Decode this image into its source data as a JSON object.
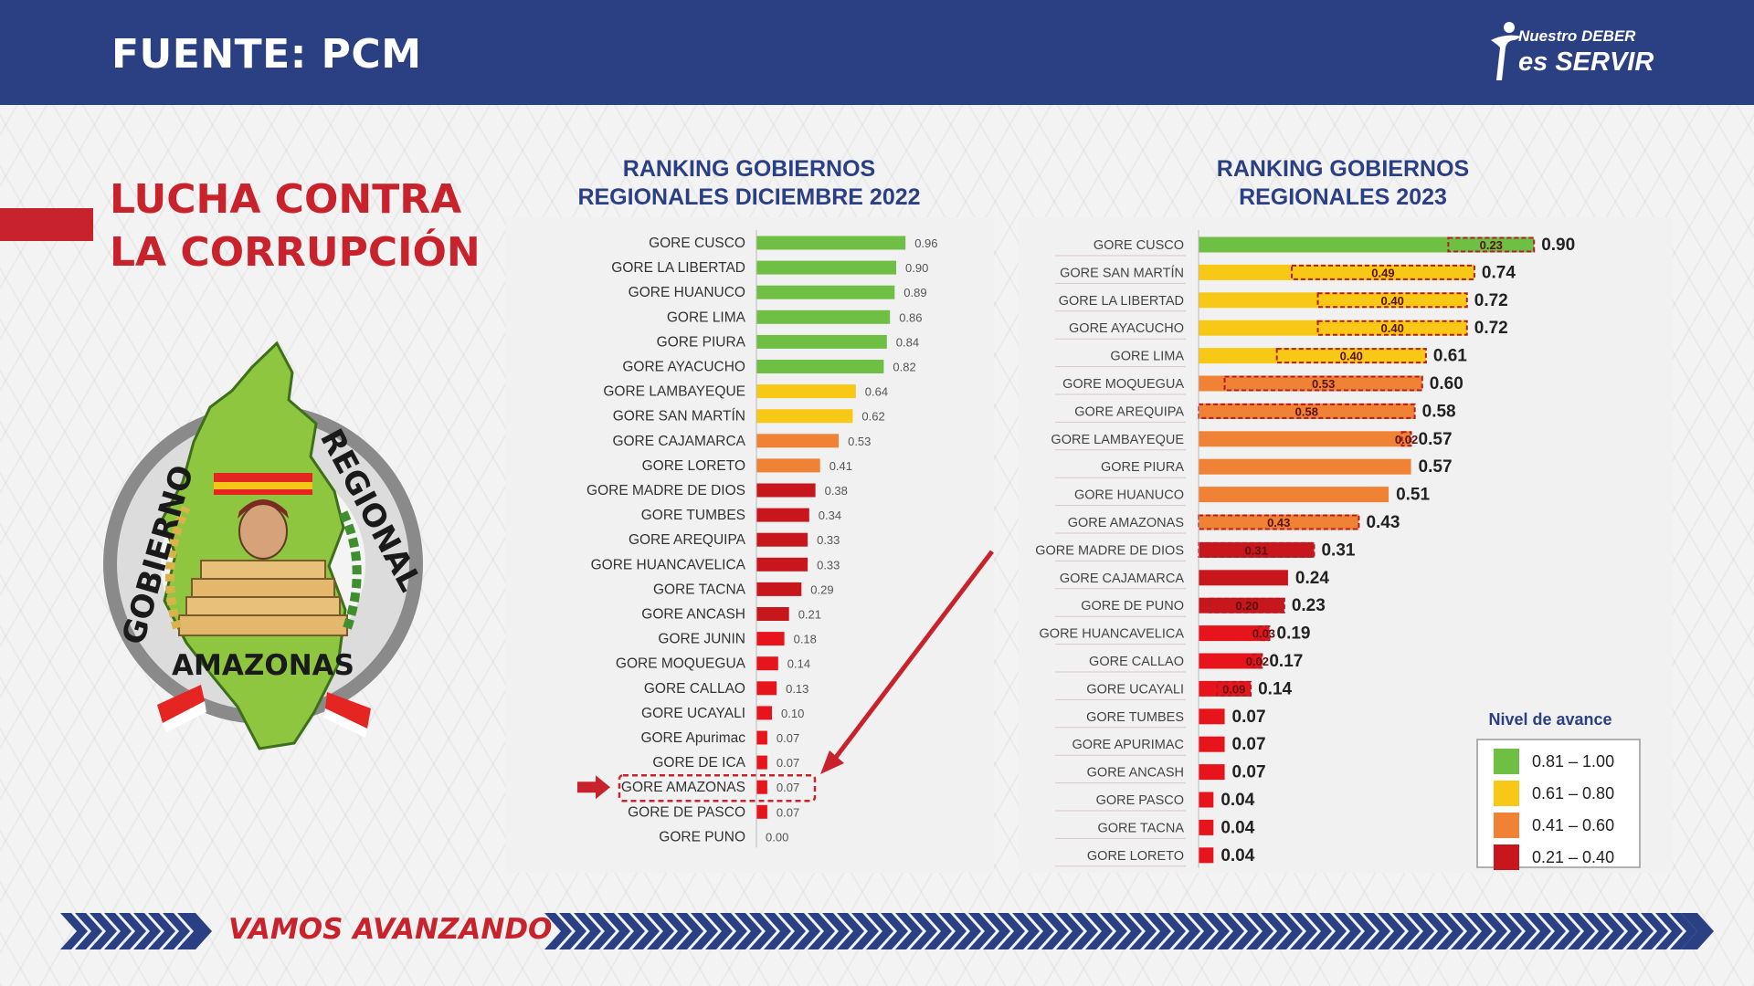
{
  "header": {
    "title": "FUENTE: PCM",
    "brand_line1": "Nuestro DEBER",
    "brand_line2": "es SERVIR"
  },
  "section": {
    "title_line1": "LUCHA CONTRA",
    "title_line2": "LA CORRUPCIÓN"
  },
  "logo": {
    "text_top_left": "GOBIERNO",
    "text_top_right": "REGIONAL",
    "text_bottom": "AMAZONAS"
  },
  "footer": {
    "slogan": "VAMOS AVANZANDO"
  },
  "colors": {
    "navy": "#2b3f83",
    "red": "#c8232c",
    "green": "#6fbf45",
    "yellow": "#f7c815",
    "orange": "#f08236",
    "dark_red": "#c8161d",
    "bright_red": "#e8141b"
  },
  "chart_data": [
    {
      "type": "bar",
      "orientation": "horizontal",
      "title_line1": "RANKING GOBIERNOS",
      "title_line2": "REGIONALES DICIEMBRE 2022",
      "categories": [
        "GORE CUSCO",
        "GORE LA LIBERTAD",
        "GORE HUANUCO",
        "GORE LIMA",
        "GORE PIURA",
        "GORE AYACUCHO",
        "GORE LAMBAYEQUE",
        "GORE SAN MARTÍN",
        "GORE CAJAMARCA",
        "GORE LORETO",
        "GORE MADRE DE DIOS",
        "GORE TUMBES",
        "GORE AREQUIPA",
        "GORE HUANCAVELICA",
        "GORE TACNA",
        "GORE ANCASH",
        "GORE JUNIN",
        "GORE MOQUEGUA",
        "GORE CALLAO",
        "GORE UCAYALI",
        "GORE Apurimac",
        "GORE DE ICA",
        "GORE AMAZONAS",
        "GORE DE PASCO",
        "GORE PUNO"
      ],
      "values": [
        0.96,
        0.9,
        0.89,
        0.86,
        0.84,
        0.82,
        0.64,
        0.62,
        0.53,
        0.41,
        0.38,
        0.34,
        0.33,
        0.33,
        0.29,
        0.21,
        0.18,
        0.14,
        0.13,
        0.1,
        0.07,
        0.07,
        0.07,
        0.07,
        0.0
      ],
      "value_labels": [
        "0.96",
        "0.90",
        "0.89",
        "0.86",
        "0.84",
        "0.82",
        "0.64",
        "0.62",
        "0.53",
        "0.41",
        "0.38",
        "0.34",
        "0.33",
        "0.33",
        "0.29",
        "0.21",
        "0.18",
        "0.14",
        "0.13",
        "0.10",
        "0.07",
        "0.07",
        "0.07",
        "0.07",
        "0.00"
      ],
      "highlight": "GORE AMAZONAS",
      "xlim": [
        0,
        1
      ]
    },
    {
      "type": "bar",
      "orientation": "horizontal",
      "title_line1": "RANKING GOBIERNOS",
      "title_line2": "REGIONALES 2023",
      "categories": [
        "GORE CUSCO",
        "GORE SAN MARTÍN",
        "GORE LA LIBERTAD",
        "GORE AYACUCHO",
        "GORE LIMA",
        "GORE MOQUEGUA",
        "GORE AREQUIPA",
        "GORE LAMBAYEQUE",
        "GORE PIURA",
        "GORE HUANUCO",
        "GORE AMAZONAS",
        "GORE MADRE DE DIOS",
        "GORE CAJAMARCA",
        "GORE DE PUNO",
        "GORE HUANCAVELICA",
        "GORE CALLAO",
        "GORE UCAYALI",
        "GORE TUMBES",
        "GORE APURIMAC",
        "GORE ANCASH",
        "GORE PASCO",
        "GORE TACNA",
        "GORE LORETO"
      ],
      "values": [
        0.9,
        0.74,
        0.72,
        0.72,
        0.61,
        0.6,
        0.58,
        0.57,
        0.57,
        0.51,
        0.43,
        0.31,
        0.24,
        0.23,
        0.19,
        0.17,
        0.14,
        0.07,
        0.07,
        0.07,
        0.04,
        0.04,
        0.04
      ],
      "value_labels": [
        "0.90",
        "0.74",
        "0.72",
        "0.72",
        "0.61",
        "0.60",
        "0.58",
        "0.57",
        "0.57",
        "0.51",
        "0.43",
        "0.31",
        "0.24",
        "0.23",
        "0.19",
        "0.17",
        "0.14",
        "0.07",
        "0.07",
        "0.07",
        "0.04",
        "0.04",
        "0.04"
      ],
      "previous_values": [
        0.23,
        0.49,
        0.4,
        0.4,
        0.4,
        0.53,
        0.58,
        0.02,
        null,
        null,
        0.43,
        0.31,
        null,
        0.2,
        0.03,
        0.02,
        0.09,
        null,
        null,
        null,
        null,
        null,
        null
      ],
      "previous_labels": [
        "0.23",
        "0.49",
        "0.40",
        "0.40",
        "0.40",
        "0.53",
        "0.58",
        "0.02",
        "",
        "",
        "0.43",
        "0.31",
        "",
        "0.20",
        "0.03",
        "0.02",
        "0.09",
        "",
        "",
        "",
        "",
        "",
        ""
      ],
      "xlim": [
        0,
        1
      ],
      "legend": {
        "title": "Nivel de avance",
        "placement": "bottom-right",
        "items": [
          {
            "label": "0.81 – 1.00",
            "color": "#6fbf45"
          },
          {
            "label": "0.61 – 0.80",
            "color": "#f7c815"
          },
          {
            "label": "0.41 – 0.60",
            "color": "#f08236"
          },
          {
            "label": "0.21 – 0.40",
            "color": "#c8161d"
          }
        ]
      }
    }
  ]
}
